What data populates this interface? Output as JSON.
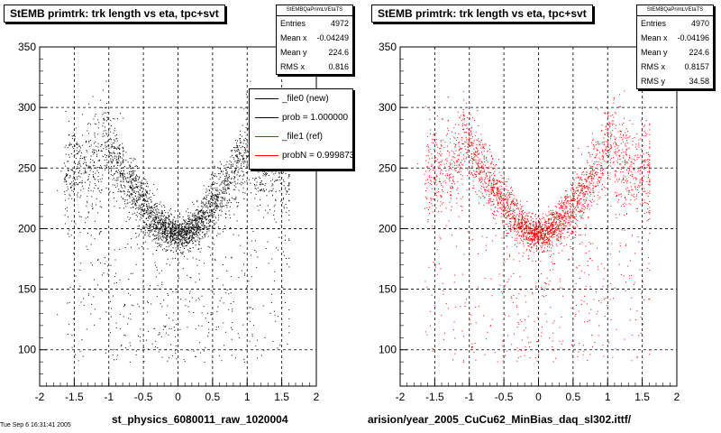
{
  "chart_data": [
    {
      "type": "scatter",
      "title": "StEMB primtrk: trk length vs eta, tpc+svt",
      "xlabel": "st_physics_6080011_raw_1020004",
      "ylabel": "",
      "xlim": [
        -2,
        2
      ],
      "ylim": [
        70,
        350
      ],
      "x_ticks": [
        "-2",
        "-1.5",
        "-1",
        "-0.5",
        "0",
        "0.5",
        "1",
        "1.5",
        "2"
      ],
      "y_ticks": [
        "100",
        "150",
        "200",
        "250",
        "300",
        "350"
      ],
      "grid": true,
      "marker_color": "#000000",
      "stats": {
        "header": "StEMBQaPrimLVEtaTS",
        "rows": [
          {
            "label": "Entries",
            "value": "4972"
          },
          {
            "label": "Mean x",
            "value": "-0.04249"
          },
          {
            "label": "Mean y",
            "value": "224.6"
          },
          {
            "label": "RMS x",
            "value": "0.816"
          }
        ]
      },
      "legend": [
        {
          "label": "_file0 (new)",
          "color": "#000000"
        },
        {
          "label": "prob = 1.000000",
          "color": "#000000"
        },
        {
          "label": "_file1 (ref)",
          "color": "#ff0000"
        },
        {
          "label": "probN = 0.999873",
          "color": "#ff0000"
        }
      ]
    },
    {
      "type": "scatter",
      "title": "StEMB primtrk: trk length vs eta, tpc+svt",
      "xlabel": "arision/year_2005_CuCu62_MinBias_daq_sl302.ittf/",
      "ylabel": "",
      "xlim": [
        -2,
        2
      ],
      "ylim": [
        70,
        350
      ],
      "x_ticks": [
        "-2",
        "-1.5",
        "-1",
        "-0.5",
        "0",
        "0.5",
        "1",
        "1.5",
        "2"
      ],
      "y_ticks": [
        "100",
        "150",
        "200",
        "250",
        "300",
        "350"
      ],
      "grid": true,
      "marker_color": "#ff0000",
      "stats": {
        "header": "StEMBQaPrimLVEtaTS",
        "rows": [
          {
            "label": "Entries",
            "value": "4970"
          },
          {
            "label": "Mean x",
            "value": "-0.04196"
          },
          {
            "label": "Mean y",
            "value": "224.6"
          },
          {
            "label": "RMS x",
            "value": "0.8157"
          },
          {
            "label": "RMS y",
            "value": "34.58"
          }
        ]
      }
    }
  ],
  "footer": "Tue Sep  6 16:31:41 2005"
}
